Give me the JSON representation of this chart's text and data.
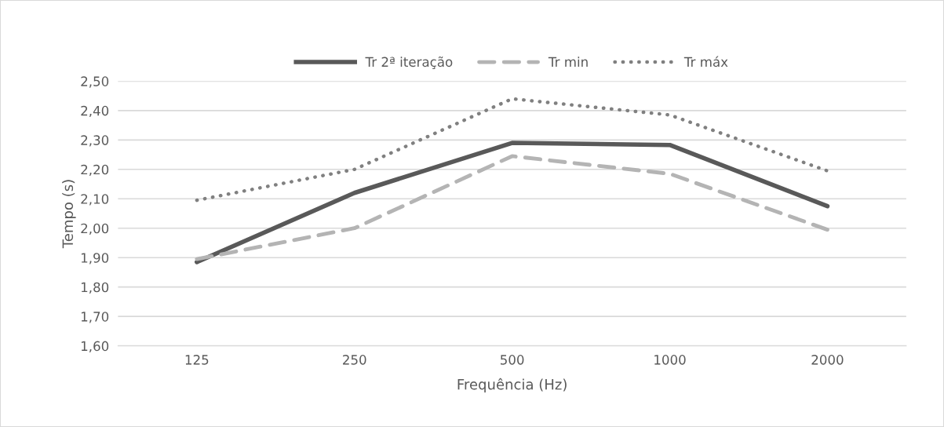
{
  "chart_data": {
    "type": "line",
    "xlabel": "Frequência (Hz)",
    "ylabel": "Tempo (s)",
    "categories": [
      "125",
      "250",
      "500",
      "1000",
      "2000"
    ],
    "series": [
      {
        "name": "Tr 2ª iteração",
        "color": "#595959",
        "line_style": "solid",
        "values": [
          1.885,
          2.12,
          2.29,
          2.283,
          2.075
        ]
      },
      {
        "name": "Tr min",
        "color": "#b4b4b4",
        "line_style": "dashed",
        "values": [
          1.895,
          2.0,
          2.245,
          2.185,
          1.995
        ]
      },
      {
        "name": "Tr máx",
        "color": "#808080",
        "line_style": "dotted",
        "values": [
          2.095,
          2.2,
          2.44,
          2.385,
          2.195
        ]
      }
    ],
    "ylim": [
      1.6,
      2.5
    ],
    "yticks": [
      {
        "value": 1.6,
        "label": "1,60"
      },
      {
        "value": 1.7,
        "label": "1,70"
      },
      {
        "value": 1.8,
        "label": "1,80"
      },
      {
        "value": 1.9,
        "label": "1,90"
      },
      {
        "value": 2.0,
        "label": "2,00"
      },
      {
        "value": 2.1,
        "label": "2,10"
      },
      {
        "value": 2.2,
        "label": "2,20"
      },
      {
        "value": 2.3,
        "label": "2,30"
      },
      {
        "value": 2.4,
        "label": "2,40"
      },
      {
        "value": 2.5,
        "label": "2,50"
      }
    ],
    "grid": "y",
    "legend": "top",
    "marker": "none"
  }
}
